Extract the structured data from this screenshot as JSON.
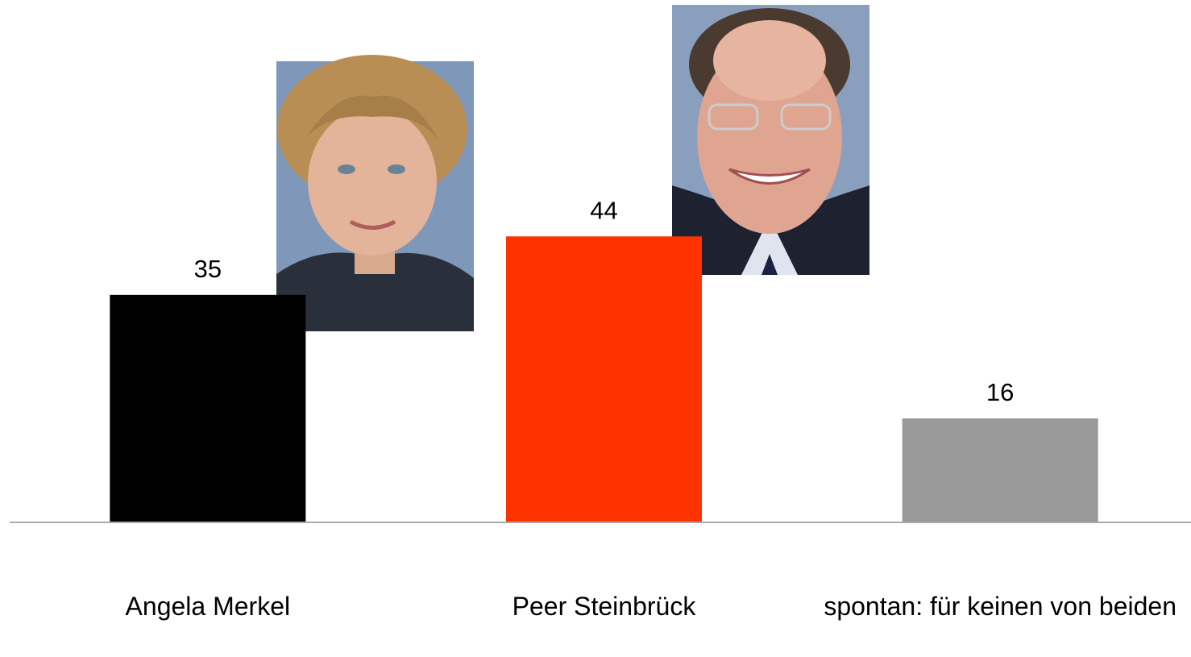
{
  "chart_data": {
    "type": "bar",
    "categories": [
      "Angela Merkel",
      "Peer Steinbrück",
      "spontan: für keinen von beiden"
    ],
    "values": [
      35,
      44,
      16
    ],
    "colors": [
      "#000000",
      "#ff3300",
      "#999999"
    ],
    "ylim": [
      0,
      80
    ]
  }
}
